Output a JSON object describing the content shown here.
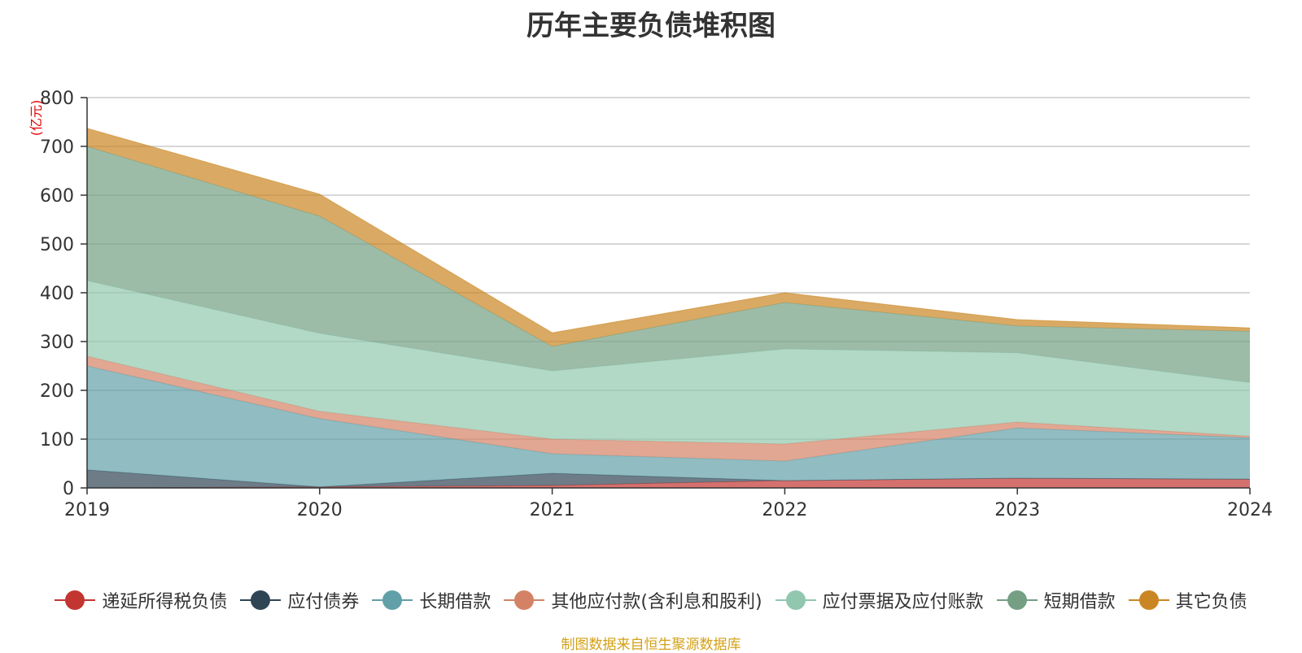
{
  "chart_data": {
    "type": "area",
    "title": "历年主要负债堆积图",
    "ylabel": "(亿元)",
    "xlabel": "",
    "x": [
      "2019",
      "2020",
      "2021",
      "2022",
      "2023",
      "2024"
    ],
    "ylim": [
      0,
      800
    ],
    "yticks": [
      "0",
      "100",
      "200",
      "300",
      "400",
      "500",
      "600",
      "700",
      "800"
    ],
    "grid": true,
    "stacked": true,
    "legend_position": "bottom",
    "series": [
      {
        "name": "递延所得税负债",
        "color": "#c23531",
        "values": [
          0,
          2,
          5,
          15,
          20,
          18
        ]
      },
      {
        "name": "应付债券",
        "color": "#2f4554",
        "values": [
          37,
          0,
          25,
          0,
          0,
          0
        ]
      },
      {
        "name": "长期借款",
        "color": "#61a0a8",
        "values": [
          213,
          140,
          40,
          40,
          103,
          85
        ]
      },
      {
        "name": "其他应付款(含利息和股利)",
        "color": "#d48265",
        "values": [
          20,
          15,
          30,
          35,
          12,
          3
        ]
      },
      {
        "name": "应付票据及应付账款",
        "color": "#91c7ae",
        "values": [
          155,
          160,
          140,
          195,
          142,
          110
        ]
      },
      {
        "name": "短期借款",
        "color": "#749f83",
        "values": [
          275,
          240,
          50,
          95,
          55,
          105
        ]
      },
      {
        "name": "其它负债",
        "color": "#ca8622",
        "values": [
          37,
          45,
          28,
          20,
          13,
          7
        ]
      }
    ]
  },
  "footer": {
    "source": "制图数据来自恒生聚源数据库"
  }
}
